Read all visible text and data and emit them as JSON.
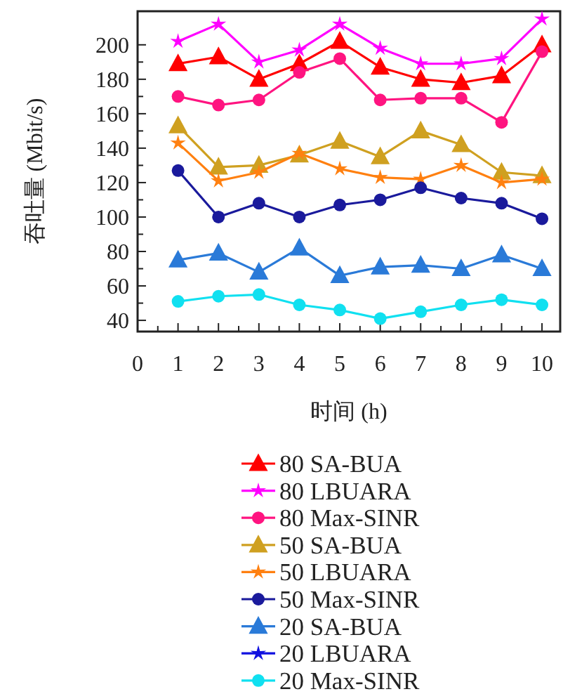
{
  "chart_data": {
    "type": "line",
    "xlabel": "时间 (h)",
    "ylabel": "吞吐量 (Mbit/s)",
    "x": [
      1,
      2,
      3,
      4,
      5,
      6,
      7,
      8,
      9,
      10
    ],
    "xlim": [
      0,
      10.45
    ],
    "xticks": [
      0,
      1,
      2,
      3,
      4,
      5,
      6,
      7,
      8,
      9,
      10
    ],
    "ylim": [
      33.5,
      219.5
    ],
    "yticks": [
      40,
      60,
      80,
      100,
      120,
      140,
      160,
      180,
      200
    ],
    "grid": false,
    "legend": "bottom",
    "series": [
      {
        "name": "80 SA-BUA",
        "color": "#ff0000",
        "marker": "triangle",
        "values": [
          189,
          193,
          180,
          189,
          202,
          187,
          180,
          178,
          182,
          200
        ]
      },
      {
        "name": "80 LBUARA",
        "color": "#ff00ff",
        "marker": "star",
        "values": [
          202,
          212,
          190,
          197,
          212,
          198,
          189,
          189,
          192,
          215
        ]
      },
      {
        "name": "80 Max-SINR",
        "color": "#ff1480",
        "marker": "circle",
        "values": [
          170,
          165,
          168,
          184,
          192,
          168,
          169,
          169,
          155,
          196
        ]
      },
      {
        "name": "50 SA-BUA",
        "color": "#cfa020",
        "marker": "triangle",
        "values": [
          153,
          129,
          130,
          136,
          144,
          135,
          150,
          142,
          126,
          124
        ]
      },
      {
        "name": "50 LBUARA",
        "color": "#ff8010",
        "marker": "star",
        "values": [
          143,
          121,
          126,
          137,
          128,
          123,
          122,
          130,
          120,
          122
        ]
      },
      {
        "name": "50 Max-SINR",
        "color": "#1a1a9c",
        "marker": "circle",
        "values": [
          127,
          100,
          108,
          100,
          107,
          110,
          117,
          111,
          108,
          99
        ]
      },
      {
        "name": "20 SA-BUA",
        "color": "#2a7ad8",
        "marker": "triangle",
        "values": [
          75,
          79,
          68,
          82,
          66,
          71,
          72,
          70,
          78,
          70
        ]
      },
      {
        "name": "20 LBUARA",
        "color": "#1010e0",
        "marker": "star",
        "values": [
          null,
          null,
          null,
          null,
          null,
          null,
          null,
          null,
          null,
          null
        ]
      },
      {
        "name": "20 Max-SINR",
        "color": "#10e0f0",
        "marker": "circle",
        "values": [
          51,
          54,
          55,
          49,
          46,
          41,
          45,
          49,
          52,
          49
        ]
      }
    ]
  }
}
